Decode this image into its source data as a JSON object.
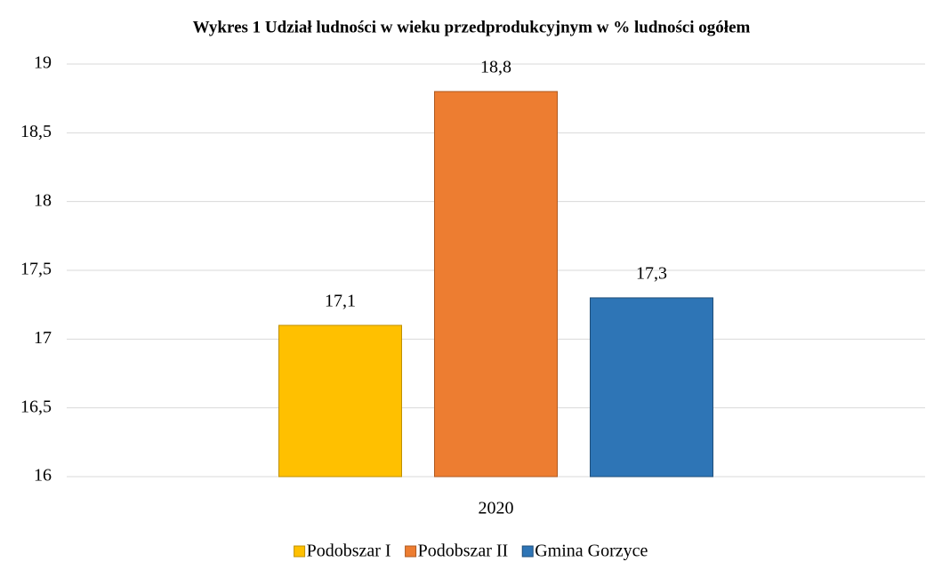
{
  "chart_data": {
    "type": "bar",
    "title": "Wykres 1 Udział ludności w wieku przedprodukcyjnym w % ludności ogółem",
    "categories": [
      "2020"
    ],
    "series": [
      {
        "name": "Podobszar I",
        "color": "#ffc000",
        "values": [
          17.1
        ],
        "value_labels": [
          "17,1"
        ]
      },
      {
        "name": "Podobszar II",
        "color": "#ed7d31",
        "values": [
          18.8
        ],
        "value_labels": [
          "18,8"
        ]
      },
      {
        "name": "Gmina Gorzyce",
        "color": "#2e75b6",
        "values": [
          17.3
        ],
        "value_labels": [
          "17,3"
        ]
      }
    ],
    "ylim": [
      16,
      19
    ],
    "yticks": [
      16,
      {
        "value": 16.5,
        "label": "16,5"
      },
      17,
      {
        "value": 17.5,
        "label": "17,5"
      },
      18,
      {
        "value": 18.5,
        "label": "18,5"
      },
      19
    ],
    "grid": true,
    "legend": "bottom"
  }
}
